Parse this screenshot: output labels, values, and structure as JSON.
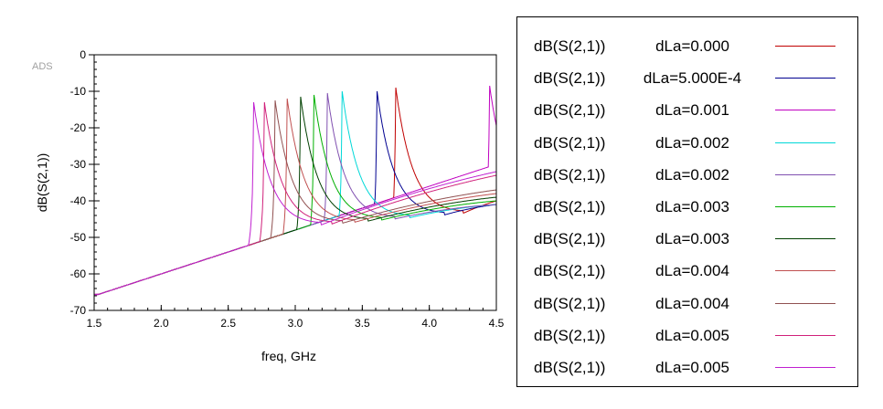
{
  "watermark": "ADS",
  "chart_data": {
    "type": "line",
    "title": "",
    "xlabel": "freq, GHz",
    "ylabel": "dB(S(2,1))",
    "xlim": [
      1.5,
      4.5
    ],
    "ylim": [
      -70,
      0
    ],
    "xticks": [
      1.5,
      2.0,
      2.5,
      3.0,
      3.5,
      4.0,
      4.5
    ],
    "xtick_labels": [
      "1.5",
      "2.0",
      "2.5",
      "3.0",
      "3.5",
      "4.0",
      "4.5"
    ],
    "yticks": [
      -70,
      -60,
      -50,
      -40,
      -30,
      -20,
      -10,
      0
    ],
    "ytick_labels": [
      "-70",
      "-60",
      "-50",
      "-40",
      "-30",
      "-20",
      "-10",
      "0"
    ],
    "grid": false,
    "legend_position": "right",
    "series": [
      {
        "expr": "dB(S(2,1))",
        "param": "dLa=0.000",
        "color": "#c00000",
        "f0": 3.75,
        "peak": -9,
        "end": -40
      },
      {
        "expr": "dB(S(2,1))",
        "param": "dLa=5.000E-4",
        "color": "#000090",
        "f0": 3.61,
        "peak": -10,
        "end": -41
      },
      {
        "expr": "dB(S(2,1))",
        "param": "dLa=0.001",
        "color": "#c000c0",
        "f0": 4.45,
        "peak": -8.5,
        "end": -23
      },
      {
        "expr": "dB(S(2,1))",
        "param": "dLa=0.002",
        "color": "#00d8d8",
        "f0": 3.35,
        "peak": -10,
        "end": -41
      },
      {
        "expr": "dB(S(2,1))",
        "param": "dLa=0.002",
        "color": "#8050b0",
        "f0": 3.24,
        "peak": -10.5,
        "end": -41
      },
      {
        "expr": "dB(S(2,1))",
        "param": "dLa=0.003",
        "color": "#00b000",
        "f0": 3.14,
        "peak": -11,
        "end": -40
      },
      {
        "expr": "dB(S(2,1))",
        "param": "dLa=0.003",
        "color": "#004000",
        "f0": 3.04,
        "peak": -11.5,
        "end": -39
      },
      {
        "expr": "dB(S(2,1))",
        "param": "dLa=0.004",
        "color": "#c05050",
        "f0": 2.94,
        "peak": -12,
        "end": -38
      },
      {
        "expr": "dB(S(2,1))",
        "param": "dLa=0.004",
        "color": "#905050",
        "f0": 2.85,
        "peak": -12.5,
        "end": -37
      },
      {
        "expr": "dB(S(2,1))",
        "param": "dLa=0.005",
        "color": "#d0207a",
        "f0": 2.77,
        "peak": -13,
        "end": -33
      },
      {
        "expr": "dB(S(2,1))",
        "param": "dLa=0.005",
        "color": "#c020d0",
        "f0": 2.69,
        "peak": -13,
        "end": -32
      }
    ]
  }
}
